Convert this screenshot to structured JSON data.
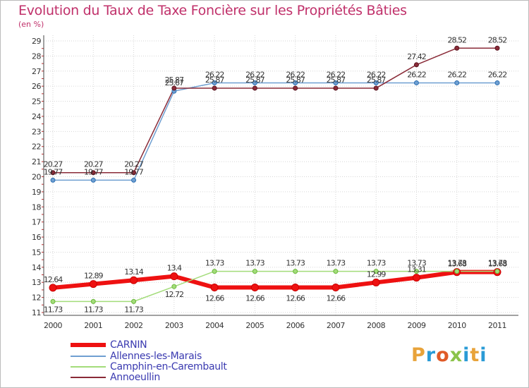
{
  "header": {
    "title": "Evolution du Taux de Taxe Foncière sur les Propriétés Bâties",
    "unit": "(en %)"
  },
  "logo": {
    "letters": [
      "P",
      "r",
      "o",
      "x",
      "i",
      "t",
      "i"
    ],
    "colors": [
      "#e8a33a",
      "#2a9bd6",
      "#e05a27",
      "#8bc34a",
      "#2a9bd6",
      "#e8a33a",
      "#2a9bd6"
    ]
  },
  "chart_data": {
    "type": "line",
    "title": "Evolution du Taux de Taxe Foncière sur les Propriétés Bâties",
    "ylabel": "(en %)",
    "xlabel": "",
    "categories": [
      "2000",
      "2001",
      "2002",
      "2003",
      "2004",
      "2005",
      "2006",
      "2007",
      "2008",
      "2009",
      "2010",
      "2011"
    ],
    "ylim": [
      11,
      29
    ],
    "yticks": [
      11,
      12,
      13,
      14,
      15,
      16,
      17,
      18,
      19,
      20,
      21,
      22,
      23,
      24,
      25,
      26,
      27,
      28,
      29
    ],
    "legend_position": "bottom-left",
    "series": [
      {
        "name": "CARNIN",
        "color": "#ee1111",
        "width": 6,
        "values": [
          12.64,
          12.89,
          13.14,
          13.4,
          12.66,
          12.66,
          12.66,
          12.66,
          12.99,
          13.31,
          13.68,
          13.68
        ],
        "labels": [
          "12.64",
          "12.89",
          "13.14",
          "13.4",
          "12.66",
          "12.66",
          "12.66",
          "12.66",
          "12.99",
          "13.31",
          "13.68",
          "13.68"
        ]
      },
      {
        "name": "Allennes-les-Marais",
        "color": "#6f9fd1",
        "width": 1.5,
        "values": [
          19.77,
          19.77,
          19.77,
          25.67,
          26.22,
          26.22,
          26.22,
          26.22,
          26.22,
          26.22,
          26.22,
          26.22
        ],
        "labels": [
          "19.77",
          "19.77",
          "19.77",
          "25.67",
          "26.22",
          "26.22",
          "26.22",
          "26.22",
          "26.22",
          "26.22",
          "26.22",
          "26.22"
        ]
      },
      {
        "name": "Camphin-en-Carembault",
        "color": "#a3dc7a",
        "width": 1.5,
        "values": [
          11.73,
          11.73,
          11.73,
          12.72,
          13.73,
          13.73,
          13.73,
          13.73,
          13.73,
          13.73,
          13.73,
          13.73
        ],
        "labels": [
          "11.73",
          "11.73",
          "11.73",
          "12.72",
          "13.73",
          "13.73",
          "13.73",
          "13.73",
          "13.73",
          "13.73",
          "13.73",
          "13.73"
        ]
      },
      {
        "name": "Annoeullin",
        "color": "#8a2b38",
        "width": 1.5,
        "values": [
          20.27,
          20.27,
          20.27,
          25.87,
          25.87,
          25.87,
          25.87,
          25.87,
          25.87,
          27.42,
          28.52,
          28.52
        ],
        "labels": [
          "20.27",
          "20.27",
          "20.27",
          "25.87",
          "25.87",
          "25.87",
          "25.87",
          "25.87",
          "25.87",
          "27.42",
          "28.52",
          "28.52"
        ]
      }
    ]
  }
}
